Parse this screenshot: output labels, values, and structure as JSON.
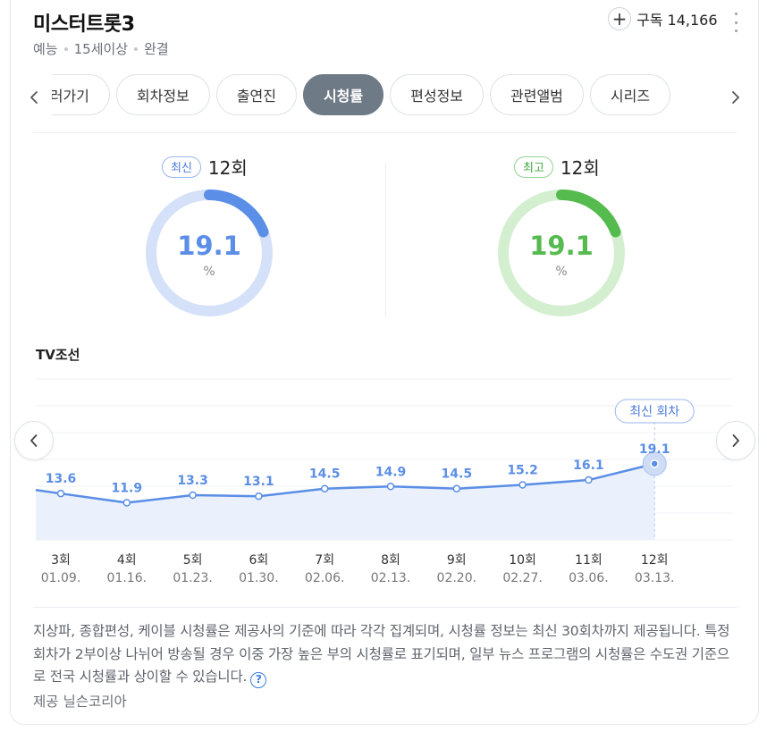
{
  "header": {
    "title": "미스터트롯3",
    "meta": [
      "예능",
      "15세이상",
      "완결"
    ],
    "subscribe_label": "구독 14,166"
  },
  "tabs": [
    "보러가기",
    "회차정보",
    "출연진",
    "시청률",
    "편성정보",
    "관련앨범",
    "시리즈"
  ],
  "active_tab": "시청률",
  "latest": {
    "badge": "최신",
    "episode": "12회",
    "rating": "19.1",
    "unit": "%",
    "color": "#5b8ee6",
    "track_color": "#d5e1f8"
  },
  "best": {
    "badge": "최고",
    "episode": "12회",
    "rating": "19.1",
    "unit": "%",
    "color": "#56bb4f",
    "track_color": "#d3efd0"
  },
  "channel": "TV조선",
  "chart_data": {
    "type": "area",
    "categories": [
      "3회",
      "4회",
      "5회",
      "6회",
      "7회",
      "8회",
      "9회",
      "10회",
      "11회",
      "12회"
    ],
    "dates": [
      "01.09.",
      "01.16.",
      "01.23.",
      "01.30.",
      "02.06.",
      "02.13.",
      "02.20.",
      "02.27.",
      "03.06.",
      "03.13."
    ],
    "values": [
      13.6,
      11.9,
      13.3,
      13.1,
      14.5,
      14.9,
      14.5,
      15.2,
      16.1,
      19.1
    ],
    "value_labels": [
      "13.6",
      "11.9",
      "13.3",
      "13.1",
      "14.5",
      "14.9",
      "14.5",
      "15.2",
      "16.1",
      "19.1"
    ],
    "highlight_index": 9,
    "highlight_label": "최신 회차",
    "line_color": "#5b8ee6",
    "fill_color": "#eaf1fc",
    "grid": true
  },
  "note": "지상파, 종합편성, 케이블 시청률은 제공사의 기준에 따라 각각 집계되며, 시청률 정보는 최신 30회차까지 제공됩니다. 특정 회차가 2부이상 나뉘어 방송될 경우 이중 가장 높은 부의 시청률로 표기되며, 일부 뉴스 프로그램의 시청률은 수도권 기준으로 전국 시청률과 상이할 수 있습니다.",
  "provider": "제공  닐슨코리아",
  "icons": {
    "plus": "plus-icon",
    "more": "kebab-menu-icon",
    "left": "chevron-left-icon",
    "right": "chevron-right-icon",
    "help": "question-circle-icon"
  }
}
